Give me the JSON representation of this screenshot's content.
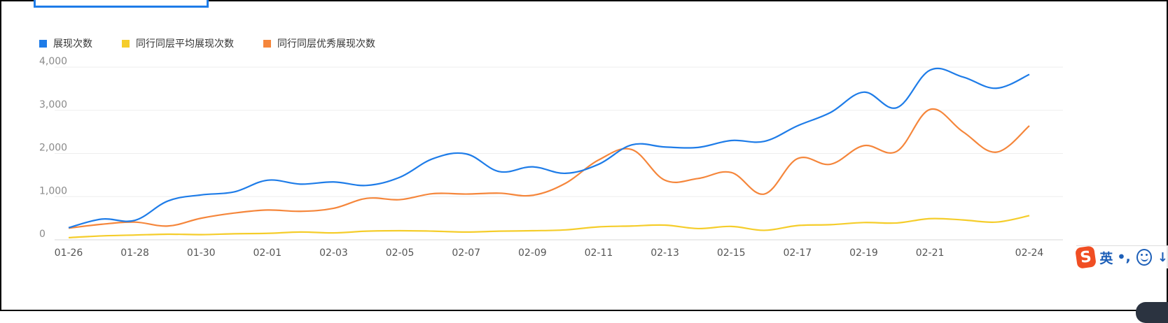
{
  "legend": [
    {
      "label": "展现次数",
      "color": "#1e7ce8"
    },
    {
      "label": "同行同层平均展现次数",
      "color": "#f5cd2b"
    },
    {
      "label": "同行同层优秀展现次数",
      "color": "#f5863b"
    }
  ],
  "ime": {
    "logo": "S",
    "lang": "英",
    "punct": "•,",
    "emoji_icon": "smiley-icon",
    "extra": "↓"
  },
  "chart_data": {
    "type": "line",
    "x": [
      "01-26",
      "01-27",
      "01-28",
      "01-29",
      "01-30",
      "01-31",
      "02-01",
      "02-02",
      "02-03",
      "02-04",
      "02-05",
      "02-06",
      "02-07",
      "02-08",
      "02-09",
      "02-10",
      "02-11",
      "02-12",
      "02-13",
      "02-14",
      "02-15",
      "02-16",
      "02-17",
      "02-18",
      "02-19",
      "02-20",
      "02-21",
      "02-22",
      "02-23",
      "02-24"
    ],
    "x_tick_labels": [
      "01-26",
      "01-28",
      "01-30",
      "02-01",
      "02-03",
      "02-05",
      "02-07",
      "02-09",
      "02-11",
      "02-13",
      "02-15",
      "02-17",
      "02-19",
      "02-21",
      "02-24"
    ],
    "y_tick_labels": [
      "0",
      "1,000",
      "2,000",
      "3,000",
      "4,000"
    ],
    "ylim": [
      0,
      4000
    ],
    "grid": true,
    "legend_position": "top-left",
    "series": [
      {
        "name": "展现次数",
        "color": "#1e7ce8",
        "values": [
          280,
          480,
          450,
          900,
          1040,
          1110,
          1380,
          1290,
          1340,
          1260,
          1450,
          1880,
          1990,
          1580,
          1690,
          1540,
          1750,
          2200,
          2150,
          2140,
          2300,
          2280,
          2640,
          2950,
          3420,
          3060,
          3930,
          3770,
          3510,
          3830
        ]
      },
      {
        "name": "同行同层平均展现次数",
        "color": "#f5cd2b",
        "values": [
          50,
          90,
          110,
          130,
          120,
          140,
          150,
          180,
          160,
          200,
          210,
          200,
          180,
          200,
          210,
          230,
          300,
          320,
          340,
          260,
          310,
          220,
          330,
          350,
          400,
          390,
          490,
          460,
          410,
          560
        ]
      },
      {
        "name": "同行同层优秀展现次数",
        "color": "#f5863b",
        "values": [
          270,
          360,
          410,
          320,
          500,
          620,
          690,
          660,
          730,
          960,
          930,
          1070,
          1060,
          1080,
          1030,
          1310,
          1850,
          2090,
          1380,
          1420,
          1560,
          1060,
          1880,
          1750,
          2180,
          2050,
          3020,
          2500,
          2030,
          2640
        ]
      }
    ]
  }
}
